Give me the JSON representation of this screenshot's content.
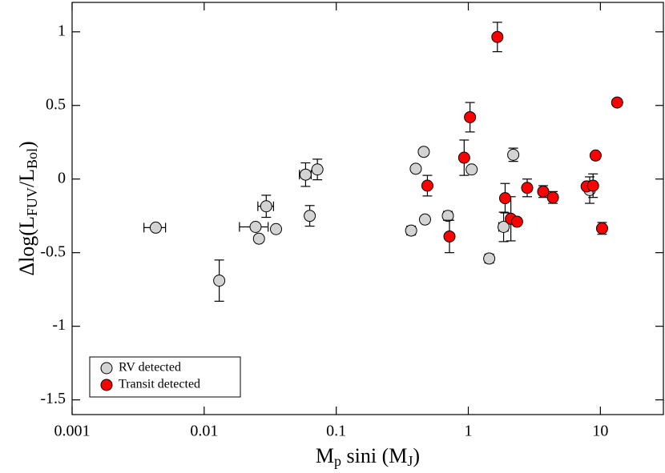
{
  "chart_data": {
    "type": "scatter",
    "xlabel": [
      "M",
      "p",
      " sini (M",
      "J",
      ")"
    ],
    "ylabel": [
      "Δlog(L",
      "FUV",
      "/L",
      "Bol",
      ")"
    ],
    "xscale": "log",
    "xlim": [
      0.001,
      30
    ],
    "xticks": [
      0.001,
      0.01,
      0.1,
      1,
      10
    ],
    "ylim": [
      -1.6,
      1.2
    ],
    "yticks": [
      -1.5,
      -1,
      -0.5,
      0,
      0.5,
      1
    ],
    "legend": "lower left",
    "series": [
      {
        "name": "RV detected",
        "color": "#d3d3d3",
        "x": [
          0.0043,
          0.013,
          0.0245,
          0.026,
          0.0295,
          0.035,
          0.0586,
          0.063,
          0.072,
          0.369,
          0.4,
          0.46,
          0.47,
          0.7,
          1.06,
          1.85,
          1.44,
          2.19,
          8.3
        ],
        "values": [
          -0.33,
          -0.69,
          -0.325,
          -0.405,
          -0.185,
          -0.34,
          0.03,
          -0.25,
          0.065,
          -0.35,
          0.07,
          0.185,
          -0.275,
          -0.25,
          0.065,
          -0.325,
          -0.54,
          0.165,
          -0.075
        ],
        "xerr": [
          0.0008,
          null,
          0.006,
          null,
          0.004,
          null,
          0.006,
          null,
          null,
          null,
          null,
          null,
          null,
          null,
          null,
          0.15,
          null,
          null,
          null
        ],
        "yerr": [
          null,
          0.14,
          null,
          null,
          0.075,
          null,
          0.08,
          0.07,
          0.07,
          0.03,
          null,
          null,
          null,
          0.03,
          null,
          0.1,
          0.03,
          0.045,
          0.09
        ]
      },
      {
        "name": "Transit detected",
        "color": "#ff0000",
        "x": [
          1.66,
          1.03,
          13.4,
          0.93,
          0.49,
          0.72,
          1.9,
          2.1,
          2.34,
          2.79,
          3.69,
          4.37,
          7.87,
          8.8,
          9.2,
          10.3
        ],
        "values": [
          0.965,
          0.42,
          0.52,
          0.145,
          -0.045,
          -0.39,
          -0.13,
          -0.27,
          -0.29,
          -0.06,
          -0.085,
          -0.125,
          -0.05,
          -0.045,
          0.16,
          -0.335
        ],
        "xerr": [
          null,
          null,
          null,
          null,
          null,
          null,
          null,
          null,
          null,
          null,
          null,
          null,
          null,
          null,
          null,
          null
        ],
        "yerr": [
          0.1,
          0.1,
          null,
          0.12,
          0.07,
          0.11,
          0.1,
          0.15,
          null,
          0.06,
          0.04,
          0.04,
          null,
          0.08,
          null,
          0.04
        ]
      }
    ]
  }
}
